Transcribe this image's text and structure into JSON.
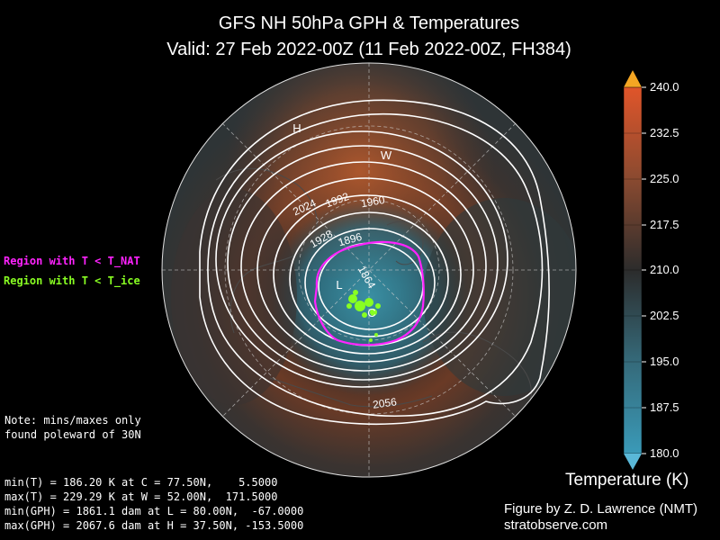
{
  "title": {
    "line1": "GFS NH 50hPa GPH & Temperatures",
    "line2": "Valid: 27 Feb 2022-00Z  (11 Feb 2022-00Z, FH384)"
  },
  "legend": {
    "nat": "Region with T < T_NAT",
    "ice": "Region with T < T_ice",
    "nat_color": "#ff22ff",
    "ice_color": "#88ff22"
  },
  "note": [
    "Note: mins/maxes only",
    "found poleward of 30N"
  ],
  "stats": [
    "min(T) = 186.20 K at C = 77.50N,    5.5000",
    "max(T) = 229.29 K at W = 52.00N,  171.5000",
    "min(GPH) = 1861.1 dam at L = 80.00N,  -67.0000",
    "max(GPH) = 2067.6 dam at H = 37.50N, -153.5000"
  ],
  "map_markers": {
    "H": "H",
    "W": "W",
    "L": "L",
    "C": "C"
  },
  "contour_labels": [
    "2024",
    "1992",
    "1960",
    "1928",
    "1896",
    "1864",
    "2056"
  ],
  "colorbar": {
    "title": "Temperature (K)",
    "ticks": [
      "240.0",
      "232.5",
      "225.0",
      "217.5",
      "210.0",
      "202.5",
      "195.0",
      "187.5",
      "180.0"
    ],
    "min": 180.0,
    "max": 240.0
  },
  "credit": [
    "Figure by Z. D. Lawrence (NMT)",
    "stratobserve.com"
  ]
}
